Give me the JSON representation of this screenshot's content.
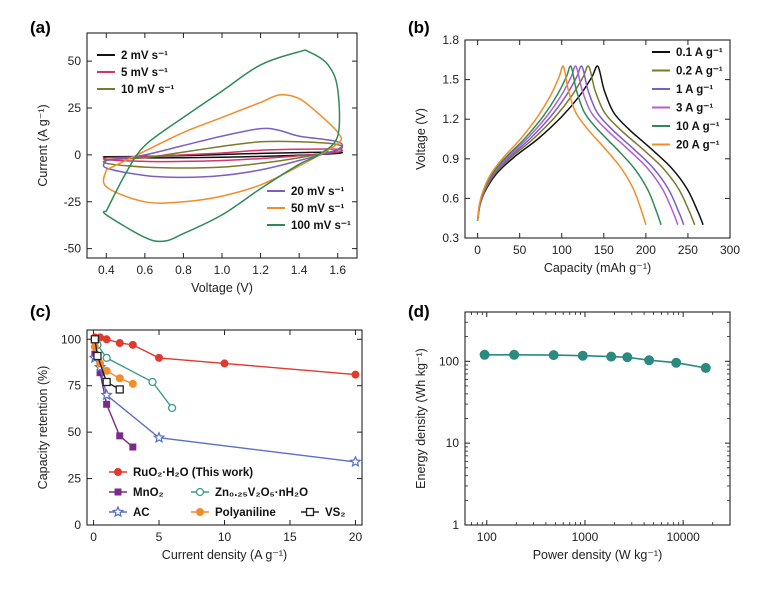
{
  "chart_data": [
    {
      "panel": "(a)",
      "type": "line",
      "xlabel": "Voltage (V)",
      "ylabel": "Current (A g⁻¹)",
      "xlim": [
        0.3,
        1.7
      ],
      "ylim": [
        -55,
        65
      ],
      "xticks": [
        0.4,
        0.6,
        0.8,
        1.0,
        1.2,
        1.4,
        1.6
      ],
      "xtick_labels": [
        "0.4",
        "0.6",
        "0.8",
        "1.0",
        "1.2",
        "1.4",
        "1.6"
      ],
      "yticks": [
        -50,
        -25,
        0,
        25,
        50
      ],
      "ytick_labels": [
        "-50",
        "-25",
        "0",
        "25",
        "50"
      ],
      "legend_positions": [
        "top-left",
        "bottom-right"
      ],
      "series": [
        {
          "name": "2 mV s⁻¹",
          "color": "#111111",
          "legend_group": 0,
          "upper": [
            [
              0.4,
              -1.0
            ],
            [
              0.6,
              -0.8
            ],
            [
              0.8,
              -0.4
            ],
            [
              1.0,
              0.2
            ],
            [
              1.2,
              0.8
            ],
            [
              1.4,
              1.2
            ],
            [
              1.6,
              1.5
            ]
          ],
          "lower": [
            [
              1.6,
              0.8
            ],
            [
              1.4,
              -0.2
            ],
            [
              1.2,
              -0.8
            ],
            [
              1.0,
              -1.3
            ],
            [
              0.8,
              -1.5
            ],
            [
              0.6,
              -1.6
            ],
            [
              0.4,
              -1.2
            ]
          ]
        },
        {
          "name": "5 mV s⁻¹",
          "color": "#d6336c",
          "legend_group": 0,
          "upper": [
            [
              0.4,
              -1.5
            ],
            [
              0.6,
              -1.0
            ],
            [
              0.8,
              0.0
            ],
            [
              1.0,
              1.0
            ],
            [
              1.2,
              2.5
            ],
            [
              1.4,
              3.0
            ],
            [
              1.6,
              3.0
            ]
          ],
          "lower": [
            [
              1.6,
              1.5
            ],
            [
              1.4,
              -0.5
            ],
            [
              1.2,
              -2.0
            ],
            [
              1.0,
              -3.0
            ],
            [
              0.8,
              -3.5
            ],
            [
              0.6,
              -3.5
            ],
            [
              0.4,
              -2.5
            ]
          ]
        },
        {
          "name": "10 mV s⁻¹",
          "color": "#7a7a2a",
          "legend_group": 0,
          "upper": [
            [
              0.4,
              -2.5
            ],
            [
              0.6,
              -1.5
            ],
            [
              0.8,
              1.5
            ],
            [
              1.0,
              4.5
            ],
            [
              1.2,
              7.0
            ],
            [
              1.4,
              7.0
            ],
            [
              1.6,
              5.5
            ]
          ],
          "lower": [
            [
              1.6,
              2.5
            ],
            [
              1.4,
              -1.5
            ],
            [
              1.2,
              -4.5
            ],
            [
              1.0,
              -6.5
            ],
            [
              0.8,
              -7.0
            ],
            [
              0.6,
              -6.5
            ],
            [
              0.4,
              -4.5
            ]
          ]
        },
        {
          "name": "20 mV s⁻¹",
          "color": "#7b5fc4",
          "legend_group": 1,
          "upper": [
            [
              0.4,
              -3.0
            ],
            [
              0.6,
              0.0
            ],
            [
              0.8,
              5.0
            ],
            [
              1.0,
              10.0
            ],
            [
              1.2,
              14.0
            ],
            [
              1.3,
              13.0
            ],
            [
              1.4,
              10.0
            ],
            [
              1.6,
              7.0
            ]
          ],
          "lower": [
            [
              1.6,
              3.0
            ],
            [
              1.4,
              -3.0
            ],
            [
              1.2,
              -8.0
            ],
            [
              1.0,
              -11.0
            ],
            [
              0.8,
              -12.0
            ],
            [
              0.6,
              -11.0
            ],
            [
              0.4,
              -7.0
            ]
          ]
        },
        {
          "name": "50 mV s⁻¹",
          "color": "#f28c28",
          "legend_group": 1,
          "upper": [
            [
              0.4,
              -8.0
            ],
            [
              0.6,
              2.0
            ],
            [
              0.8,
              12.0
            ],
            [
              1.0,
              20.0
            ],
            [
              1.2,
              28.0
            ],
            [
              1.3,
              32.0
            ],
            [
              1.4,
              30.0
            ],
            [
              1.5,
              22.0
            ],
            [
              1.6,
              12.0
            ]
          ],
          "lower": [
            [
              1.6,
              6.0
            ],
            [
              1.4,
              -6.0
            ],
            [
              1.2,
              -16.0
            ],
            [
              1.0,
              -22.0
            ],
            [
              0.8,
              -25.0
            ],
            [
              0.6,
              -25.0
            ],
            [
              0.4,
              -17.0
            ]
          ]
        },
        {
          "name": "100 mV s⁻¹",
          "color": "#2e8b57",
          "legend_group": 1,
          "upper": [
            [
              0.4,
              -30.0
            ],
            [
              0.5,
              -10.0
            ],
            [
              0.6,
              5.0
            ],
            [
              0.8,
              20.0
            ],
            [
              1.0,
              34.0
            ],
            [
              1.2,
              48.0
            ],
            [
              1.4,
              55.0
            ],
            [
              1.45,
              55.0
            ],
            [
              1.55,
              48.0
            ],
            [
              1.6,
              35.0
            ]
          ],
          "lower": [
            [
              1.6,
              10.0
            ],
            [
              1.5,
              0.0
            ],
            [
              1.4,
              -5.0
            ],
            [
              1.2,
              -18.0
            ],
            [
              1.0,
              -32.0
            ],
            [
              0.8,
              -42.0
            ],
            [
              0.7,
              -46.0
            ],
            [
              0.6,
              -44.0
            ],
            [
              0.4,
              -32.0
            ]
          ]
        }
      ]
    },
    {
      "panel": "(b)",
      "type": "line",
      "xlabel": "Capacity (mAh g⁻¹)",
      "ylabel": "Voltage (V)",
      "xlim": [
        -15,
        300
      ],
      "ylim": [
        0.3,
        1.8
      ],
      "xticks": [
        0,
        50,
        100,
        150,
        200,
        250,
        300
      ],
      "xtick_labels": [
        "0",
        "50",
        "100",
        "150",
        "200",
        "250",
        "300"
      ],
      "yticks": [
        0.3,
        0.6,
        0.9,
        1.2,
        1.5,
        1.8
      ],
      "ytick_labels": [
        "0.3",
        "0.6",
        "0.9",
        "1.2",
        "1.5",
        "1.8"
      ],
      "legend_position": "top-right",
      "series": [
        {
          "name": "0.1 A g⁻¹",
          "color": "#111111",
          "charge_end": 143,
          "discharge_end": 268
        },
        {
          "name": "0.2 A g⁻¹",
          "color": "#7a7a2a",
          "charge_end": 132,
          "discharge_end": 258
        },
        {
          "name": "1 A g⁻¹",
          "color": "#7b5fc4",
          "charge_end": 124,
          "discharge_end": 245
        },
        {
          "name": "3 A g⁻¹",
          "color": "#b25fd1",
          "charge_end": 117,
          "discharge_end": 238
        },
        {
          "name": "10 A g⁻¹",
          "color": "#2e8b57",
          "charge_end": 111,
          "discharge_end": 218
        },
        {
          "name": "20 A g⁻¹",
          "color": "#f28c28",
          "charge_end": 102,
          "discharge_end": 200
        }
      ]
    },
    {
      "panel": "(c)",
      "type": "line",
      "xlabel": "Current density (A g⁻¹)",
      "ylabel": "Capacity retention (%)",
      "xlim": [
        -0.5,
        20.5
      ],
      "ylim": [
        0,
        105
      ],
      "xticks": [
        0,
        5,
        10,
        15,
        20
      ],
      "xtick_labels": [
        "0",
        "5",
        "10",
        "15",
        "20"
      ],
      "yticks": [
        0,
        25,
        50,
        75,
        100
      ],
      "ytick_labels": [
        "0",
        "25",
        "50",
        "75",
        "100"
      ],
      "legend_position": "bottom-left",
      "series": [
        {
          "name": "RuO₂·H₂O (This work)",
          "color": "#e03a2f",
          "marker": "circle-filled",
          "x": [
            0.1,
            0.5,
            1,
            2,
            3,
            5,
            10,
            20
          ],
          "y": [
            101,
            101,
            100,
            98,
            97,
            90,
            87,
            81
          ]
        },
        {
          "name": "MnO₂",
          "color": "#7a2a8a",
          "marker": "square-filled",
          "x": [
            0.1,
            0.5,
            1,
            2,
            3
          ],
          "y": [
            92,
            82,
            65,
            48,
            42
          ]
        },
        {
          "name": "Zn₀.₂₅V₂O₅·nH₂O",
          "color": "#3a9a8a",
          "marker": "circle-open",
          "x": [
            0.1,
            0.3,
            1,
            4.5,
            6
          ],
          "y": [
            100,
            97,
            90,
            77,
            63
          ]
        },
        {
          "name": "AC",
          "color": "#5a6fc4",
          "marker": "star-open",
          "x": [
            0.1,
            0.5,
            1,
            5,
            20
          ],
          "y": [
            90,
            85,
            70,
            47,
            34
          ]
        },
        {
          "name": "Polyaniline",
          "color": "#f28c28",
          "marker": "circle-filled",
          "x": [
            0.1,
            0.5,
            1,
            2,
            3
          ],
          "y": [
            96,
            87,
            83,
            79,
            76
          ]
        },
        {
          "name": "VS₂",
          "color": "#222222",
          "marker": "square-open",
          "x": [
            0.1,
            0.3,
            1,
            2
          ],
          "y": [
            100,
            91,
            77,
            73
          ]
        }
      ]
    },
    {
      "panel": "(d)",
      "type": "line",
      "xlabel": "Power density (W kg⁻¹)",
      "ylabel": "Energy density (Wh kg⁻¹)",
      "xscale": "log",
      "yscale": "log",
      "xlim": [
        60,
        30000
      ],
      "ylim": [
        1,
        400
      ],
      "xticks": [
        100,
        1000,
        10000
      ],
      "xtick_labels": [
        "100",
        "1000",
        "10000"
      ],
      "yticks": [
        1,
        10,
        100
      ],
      "ytick_labels": [
        "1",
        "10",
        "100"
      ],
      "series": [
        {
          "color": "#2a8a80",
          "marker": "circle-filled",
          "x": [
            95,
            190,
            480,
            950,
            1850,
            2700,
            4500,
            8500,
            17000
          ],
          "y": [
            120,
            120,
            119,
            117,
            114,
            112,
            103,
            96,
            83
          ]
        }
      ]
    }
  ]
}
